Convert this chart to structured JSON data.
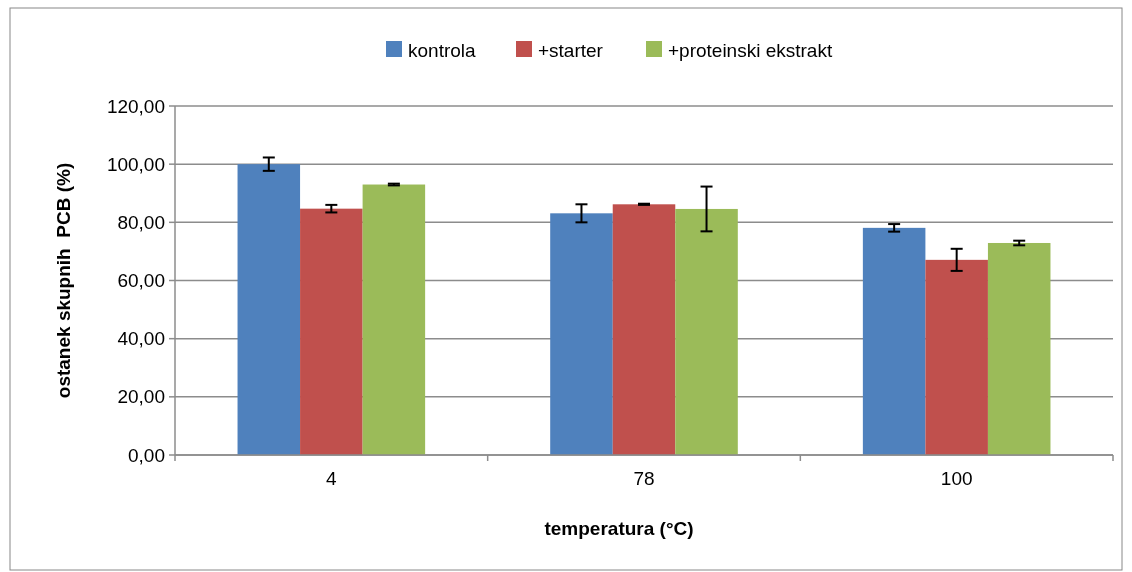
{
  "chart_data": {
    "type": "bar",
    "xlabel": "temperatura (°C)",
    "ylabel": "ostanek skupnih  PCB (%)",
    "categories": [
      "4",
      "78",
      "100"
    ],
    "series": [
      {
        "name": "kontrola",
        "color": "#4f81bd",
        "values": [
          100.0,
          83.1,
          78.1
        ],
        "errors": [
          2.3,
          3.1,
          1.3
        ]
      },
      {
        "name": "+starter",
        "color": "#c0504d",
        "values": [
          84.7,
          86.2,
          67.1
        ],
        "errors": [
          1.3,
          0.2,
          3.8
        ]
      },
      {
        "name": "+proteinski ekstrakt",
        "color": "#9bbb59",
        "values": [
          93.0,
          84.6,
          72.9
        ],
        "errors": [
          0.3,
          7.7,
          0.8
        ]
      }
    ],
    "ylim": [
      0,
      120
    ],
    "yticks": [
      {
        "value": 0,
        "label": "0,00"
      },
      {
        "value": 20,
        "label": "20,00"
      },
      {
        "value": 40,
        "label": "40,00"
      },
      {
        "value": 60,
        "label": "60,00"
      },
      {
        "value": 80,
        "label": "80,00"
      },
      {
        "value": 100,
        "label": "100,00"
      },
      {
        "value": 120,
        "label": "120,00"
      }
    ],
    "grid": "y",
    "legend": "top"
  }
}
